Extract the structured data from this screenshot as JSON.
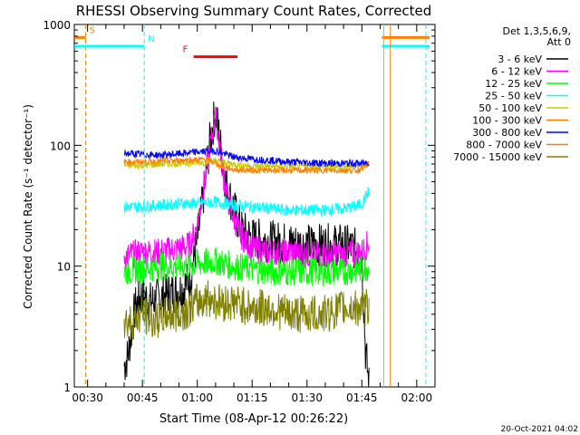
{
  "chart_data": {
    "type": "line",
    "title": "RHESSI Observing Summary Count Rates, Corrected",
    "xlabel": "Start Time (08-Apr-12 00:26:22)",
    "ylabel": "Corrected Count Rate (s⁻¹ detector⁻¹)",
    "x_ticks": [
      "00:30",
      "00:45",
      "01:00",
      "01:15",
      "01:30",
      "01:45",
      "02:00"
    ],
    "x_tick_minutes": [
      30,
      45,
      60,
      75,
      90,
      105,
      120
    ],
    "xlim_minutes": [
      26.37,
      125.0
    ],
    "y_scale": "log",
    "ylim": [
      1,
      1000
    ],
    "y_ticks": [
      "1",
      "10",
      "100",
      "1000"
    ],
    "y_tick_values": [
      1,
      10,
      100,
      1000
    ],
    "timestamp": "20-Oct-2021 04:02",
    "legend": {
      "header": [
        "Det 1,3,5,6,9,",
        "Att 0"
      ],
      "placement": "right"
    },
    "flags": [
      {
        "label": "S",
        "color": "#ff7f00",
        "minutes": [
          26.4,
          29.5
        ],
        "level": 780,
        "vline": 29.5
      },
      {
        "label": "N",
        "color": "#00ffff",
        "minutes": [
          26.4,
          45.5
        ],
        "level": 660,
        "vline": 45.5
      },
      {
        "label": "F",
        "color": "#ff0000",
        "minutes": [
          59.0,
          71.0
        ],
        "level": 540
      }
    ],
    "data_window_minutes": [
      40.0,
      110.5
    ],
    "series": [
      {
        "name": "3 - 6 keV",
        "color": "#000000",
        "x": [
          40,
          41,
          43,
          45,
          47,
          50,
          53,
          56,
          58,
          60,
          62,
          63.5,
          65,
          66,
          67,
          68,
          70,
          72,
          75,
          80,
          85,
          90,
          95,
          100,
          103,
          105,
          106,
          107
        ],
        "y": [
          1.5,
          1.8,
          4.5,
          6.0,
          5.0,
          5.5,
          6.0,
          6.5,
          8,
          16,
          45,
          110,
          190,
          120,
          70,
          45,
          30,
          20,
          17,
          16,
          15.5,
          15,
          15,
          15,
          14,
          12,
          2,
          1
        ]
      },
      {
        "name": "6 - 12 keV",
        "color": "#ff00ff",
        "x": [
          40,
          45,
          50,
          55,
          58,
          60,
          62,
          64,
          65,
          66,
          67,
          68,
          70,
          72,
          75,
          80,
          85,
          90,
          95,
          100,
          105,
          107
        ],
        "y": [
          12,
          13,
          13,
          14,
          15,
          22,
          50,
          120,
          180,
          110,
          60,
          40,
          25,
          18,
          14,
          13,
          13,
          12.5,
          12.5,
          12.5,
          13,
          16
        ]
      },
      {
        "name": "12 - 25 keV",
        "color": "#00ff00",
        "x": [
          40,
          45,
          50,
          55,
          60,
          65,
          70,
          75,
          80,
          85,
          90,
          95,
          100,
          105,
          107
        ],
        "y": [
          9,
          9.5,
          10,
          10,
          10.5,
          11,
          10,
          9.5,
          9,
          9,
          9,
          9,
          9,
          9.5,
          10
        ]
      },
      {
        "name": "25 - 50 keV",
        "color": "#00ffff",
        "x": [
          40,
          45,
          50,
          55,
          60,
          65,
          70,
          75,
          80,
          85,
          90,
          95,
          100,
          103,
          105,
          106.5,
          107
        ],
        "y": [
          31,
          31,
          32,
          33,
          33,
          34,
          32,
          31,
          30,
          29,
          29,
          29,
          30,
          31,
          33,
          40,
          42
        ]
      },
      {
        "name": "50 - 100 keV",
        "color": "#c8c800",
        "x": [
          40,
          45,
          50,
          55,
          60,
          65,
          70,
          75,
          80,
          85,
          90,
          95,
          100,
          105,
          107
        ],
        "y": [
          68,
          68,
          70,
          71,
          72,
          74,
          70,
          67,
          67,
          67,
          67,
          67,
          67,
          68,
          70
        ]
      },
      {
        "name": "100 - 300 keV",
        "color": "#ff7f00",
        "x": [
          40,
          45,
          50,
          55,
          60,
          63,
          66,
          70,
          75,
          80,
          85,
          90,
          95,
          100,
          104,
          105,
          107
        ],
        "y": [
          73,
          73,
          74,
          75,
          76,
          77,
          68,
          63,
          62,
          62,
          62,
          62,
          62,
          62,
          62,
          65,
          70
        ]
      },
      {
        "name": "300 - 800 keV",
        "color": "#0000ff",
        "x": [
          40,
          45,
          50,
          55,
          60,
          65,
          70,
          75,
          80,
          85,
          90,
          95,
          100,
          105,
          107
        ],
        "y": [
          86,
          84,
          83,
          85,
          88,
          90,
          80,
          77,
          75,
          73,
          72,
          71,
          71,
          71,
          72
        ]
      },
      {
        "name": "800 - 7000 keV",
        "color": "#ff7f00",
        "x": [],
        "y": []
      },
      {
        "name": "7000 - 15000 keV",
        "color": "#808000",
        "x": [
          40,
          42,
          45,
          48,
          52,
          55,
          58,
          60,
          63,
          66,
          70,
          75,
          80,
          85,
          90,
          95,
          100,
          103,
          105,
          107
        ],
        "y": [
          3.5,
          3.5,
          4,
          3.5,
          4,
          4,
          4.5,
          5,
          5.5,
          5,
          5,
          4.5,
          4.5,
          4,
          4,
          4,
          4.5,
          4.5,
          4.5,
          4.5
        ]
      }
    ]
  }
}
